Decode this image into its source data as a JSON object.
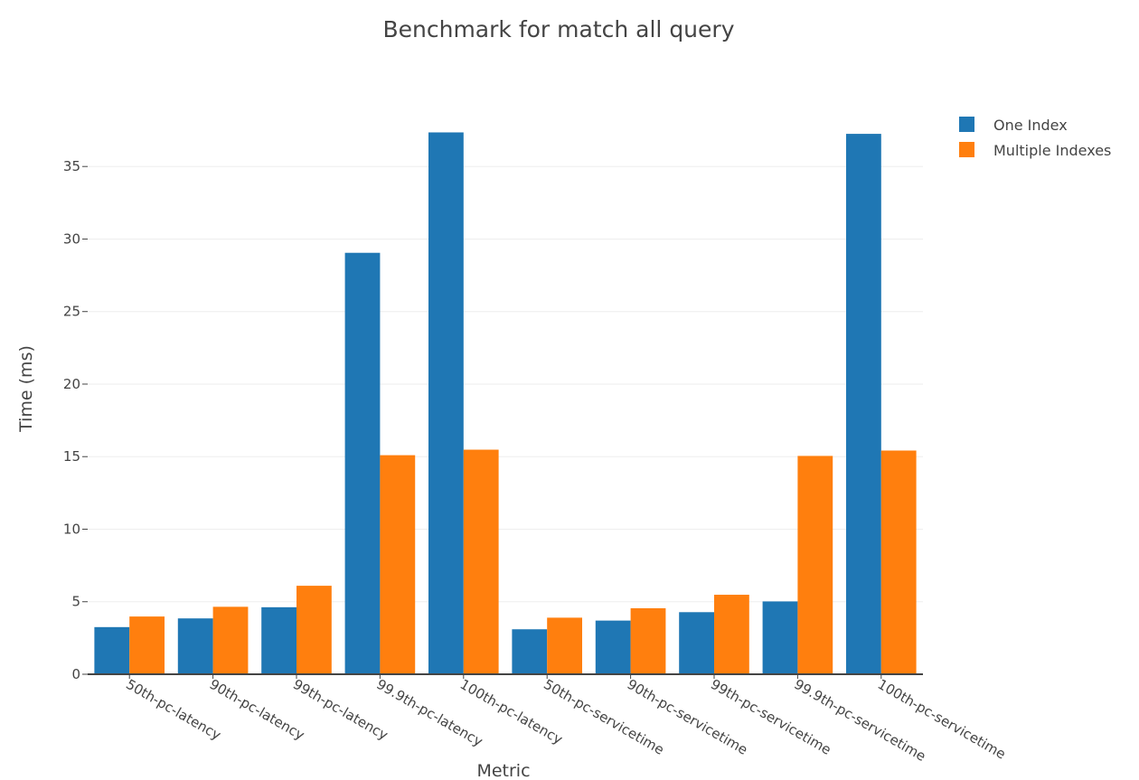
{
  "chart_data": {
    "type": "bar",
    "title": "Benchmark for match all query",
    "xlabel": "Metric",
    "ylabel": "Time (ms)",
    "categories": [
      "50th-pc-latency",
      "90th-pc-latency",
      "99th-pc-latency",
      "99.9th-pc-latency",
      "100th-pc-latency",
      "50th-pc-servicetime",
      "90th-pc-servicetime",
      "99th-pc-servicetime",
      "99.9th-pc-servicetime",
      "100th-pc-servicetime"
    ],
    "series": [
      {
        "name": "One Index",
        "color": "#1f77b4",
        "values": [
          3.25,
          3.85,
          4.62,
          29.05,
          37.35,
          3.1,
          3.7,
          4.28,
          5.02,
          37.25
        ]
      },
      {
        "name": "Multiple Indexes",
        "color": "#ff7f0e",
        "values": [
          3.98,
          4.65,
          6.1,
          15.1,
          15.48,
          3.9,
          4.55,
          5.48,
          15.05,
          15.42
        ]
      }
    ],
    "ylim": [
      0,
      39
    ],
    "yticks": [
      0,
      5,
      10,
      15,
      20,
      25,
      30,
      35
    ],
    "grid": true,
    "legend_position": "top-right"
  }
}
